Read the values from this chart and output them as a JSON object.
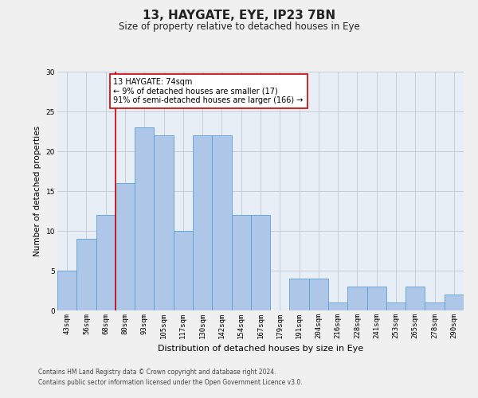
{
  "title1": "13, HAYGATE, EYE, IP23 7BN",
  "title2": "Size of property relative to detached houses in Eye",
  "xlabel": "Distribution of detached houses by size in Eye",
  "ylabel": "Number of detached properties",
  "categories": [
    "43sqm",
    "56sqm",
    "68sqm",
    "80sqm",
    "93sqm",
    "105sqm",
    "117sqm",
    "130sqm",
    "142sqm",
    "154sqm",
    "167sqm",
    "179sqm",
    "191sqm",
    "204sqm",
    "216sqm",
    "228sqm",
    "241sqm",
    "253sqm",
    "265sqm",
    "278sqm",
    "290sqm"
  ],
  "values": [
    5,
    9,
    12,
    16,
    23,
    22,
    10,
    22,
    22,
    12,
    12,
    0,
    4,
    4,
    1,
    3,
    3,
    1,
    3,
    1,
    2
  ],
  "bar_color": "#aec6e8",
  "bar_edge_color": "#5a9fd4",
  "vline_x_index": 2.5,
  "vline_color": "#cc0000",
  "annotation_text": "13 HAYGATE: 74sqm\n← 9% of detached houses are smaller (17)\n91% of semi-detached houses are larger (166) →",
  "annotation_box_color": "#ffffff",
  "annotation_box_edge": "#cc0000",
  "ylim": [
    0,
    30
  ],
  "yticks": [
    0,
    5,
    10,
    15,
    20,
    25,
    30
  ],
  "footer1": "Contains HM Land Registry data © Crown copyright and database right 2024.",
  "footer2": "Contains public sector information licensed under the Open Government Licence v3.0.",
  "bg_color": "#f0f0f0",
  "plot_bg_color": "#e8eef5",
  "grid_color": "#c0c8d8",
  "title1_fontsize": 11,
  "title2_fontsize": 8.5,
  "xlabel_fontsize": 8,
  "ylabel_fontsize": 7.5,
  "tick_fontsize": 6.5,
  "annot_fontsize": 7,
  "footer_fontsize": 5.5
}
